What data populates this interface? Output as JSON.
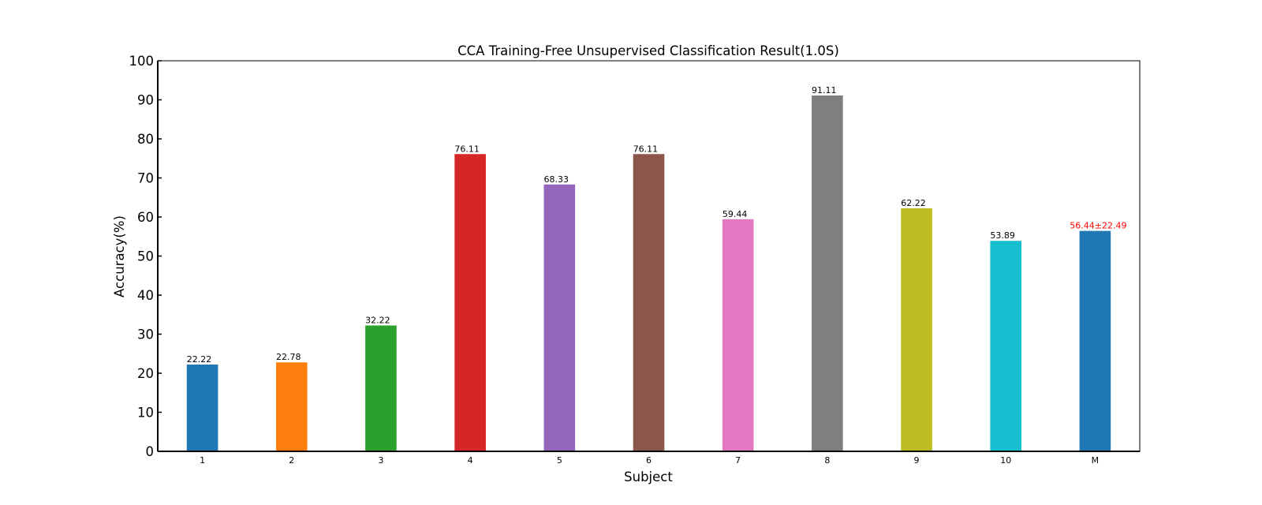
{
  "chart_data": {
    "type": "bar",
    "title": "CCA Training-Free Unsupervised Classification Result(1.0S)",
    "xlabel": "Subject",
    "ylabel": "Accuracy(%)",
    "ylim": [
      0,
      100
    ],
    "yticks": [
      0,
      10,
      20,
      30,
      40,
      50,
      60,
      70,
      80,
      90,
      100
    ],
    "categories": [
      "1",
      "2",
      "3",
      "4",
      "5",
      "6",
      "7",
      "8",
      "9",
      "10",
      "M"
    ],
    "values": [
      22.22,
      22.78,
      32.22,
      76.11,
      68.33,
      76.11,
      59.44,
      91.11,
      62.22,
      53.89,
      56.44
    ],
    "value_labels": [
      "22.22",
      "22.78",
      "32.22",
      "76.11",
      "68.33",
      "76.11",
      "59.44",
      "91.11",
      "62.22",
      "53.89",
      "56.44±22.49"
    ],
    "colors": [
      "#1f77b4",
      "#ff7f0e",
      "#2ca02c",
      "#d62728",
      "#9467bd",
      "#8c564b",
      "#e377c2",
      "#7f7f7f",
      "#bcbd22",
      "#17becf",
      "#1f77b4"
    ],
    "label_colors": [
      "#000000",
      "#000000",
      "#000000",
      "#000000",
      "#000000",
      "#000000",
      "#000000",
      "#000000",
      "#000000",
      "#000000",
      "#ff0000"
    ],
    "grid": false,
    "legend": "none"
  }
}
